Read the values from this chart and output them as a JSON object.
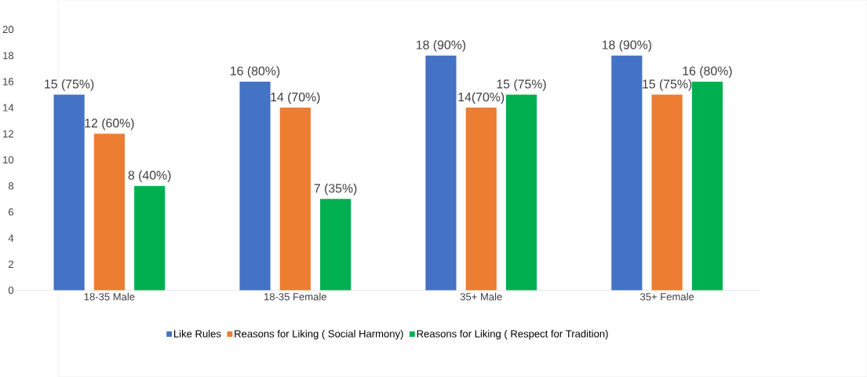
{
  "chart_data": {
    "type": "bar",
    "categories": [
      "18-35 Male",
      "18-35 Female",
      "35+ Male",
      "35+ Female"
    ],
    "series": [
      {
        "name": "Like Rules",
        "color": "#4472c4",
        "values": [
          15,
          16,
          18,
          18
        ],
        "value_labels": [
          "15 (75%)",
          "16 (80%)",
          "18 (90%)",
          "18 (90%)"
        ]
      },
      {
        "name": "Reasons for Liking ( Social Harmony)",
        "color": "#ed7d31",
        "values": [
          12,
          14,
          14,
          15
        ],
        "value_labels": [
          "12 (60%)",
          "14 (70%)",
          "14(70%)",
          "15 (75%)"
        ]
      },
      {
        "name": "Reasons for Liking ( Respect for Tradition)",
        "color": "#00b050",
        "values": [
          8,
          7,
          15,
          16
        ],
        "value_labels": [
          "8 (40%)",
          "7 (35%)",
          "15 (75%)",
          "16 (80%)"
        ]
      }
    ],
    "ylim": [
      0,
      20
    ],
    "yticks": [
      0,
      2,
      4,
      6,
      8,
      10,
      12,
      14,
      16,
      18,
      20
    ],
    "legend": "bottom"
  }
}
